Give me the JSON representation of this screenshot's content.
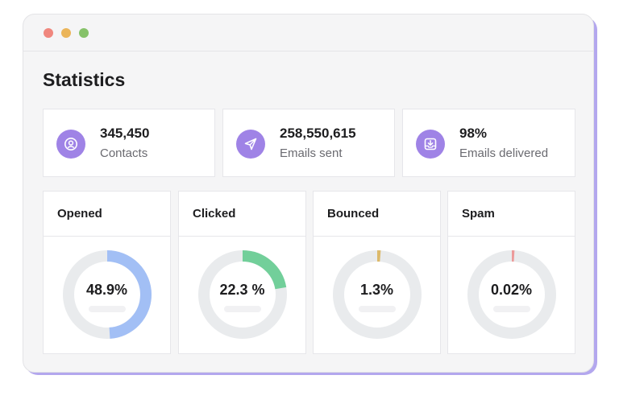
{
  "window": {
    "controls": [
      {
        "name": "close",
        "color": "#f0877e"
      },
      {
        "name": "minimize",
        "color": "#ebb55a"
      },
      {
        "name": "maximize",
        "color": "#86c26a"
      }
    ]
  },
  "page": {
    "title": "Statistics"
  },
  "stats": [
    {
      "value": "345,450",
      "label": "Contacts",
      "icon": "contact-icon"
    },
    {
      "value": "258,550,615",
      "label": "Emails sent",
      "icon": "send-icon"
    },
    {
      "value": "98%",
      "label": "Emails delivered",
      "icon": "inbox-icon"
    }
  ],
  "metrics": [
    {
      "title": "Opened",
      "display": "48.9%",
      "fraction": 0.489,
      "color": "#a2bff5"
    },
    {
      "title": "Clicked",
      "display": "22.3 %",
      "fraction": 0.223,
      "color": "#72cf9a"
    },
    {
      "title": "Bounced",
      "display": "1.3%",
      "fraction": 0.013,
      "color": "#dcb96a"
    },
    {
      "title": "Spam",
      "display": "0.02%",
      "fraction": 0.0002,
      "color": "#ec9a9a"
    }
  ],
  "colors": {
    "accent_purple": "#9f83e6",
    "ring_track": "#e9ebed",
    "window_border_glow": "#b3a7ee"
  }
}
